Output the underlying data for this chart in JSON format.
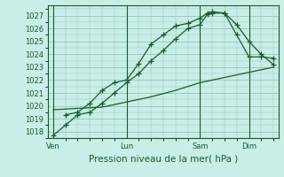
{
  "title": "Pression niveau de la mer( hPa )",
  "bg_color": "#c8eee8",
  "grid_color": "#99ccbb",
  "line_color": "#1a5c28",
  "ylim": [
    1017.5,
    1027.8
  ],
  "yticks": [
    1018,
    1019,
    1020,
    1021,
    1022,
    1023,
    1024,
    1025,
    1026,
    1027
  ],
  "xtick_labels": [
    "Ven",
    "Lun",
    "Sam",
    "Dim"
  ],
  "xtick_positions": [
    0,
    30,
    60,
    80
  ],
  "xlim": [
    -2,
    92
  ],
  "series1_x": [
    0,
    5,
    10,
    15,
    20,
    25,
    30,
    35,
    40,
    45,
    50,
    55,
    60,
    63,
    65,
    70,
    75,
    80,
    85,
    90
  ],
  "series1_y": [
    1017.7,
    1018.5,
    1019.3,
    1019.5,
    1020.2,
    1021.0,
    1021.8,
    1022.5,
    1023.5,
    1024.3,
    1025.2,
    1026.0,
    1026.3,
    1027.1,
    1027.2,
    1027.2,
    1026.3,
    1025.0,
    1024.0,
    1023.2
  ],
  "series2_x": [
    5,
    10,
    15,
    20,
    25,
    30,
    35,
    40,
    45,
    50,
    55,
    60,
    63,
    65,
    70,
    75,
    80,
    85,
    90
  ],
  "series2_y": [
    1019.3,
    1019.5,
    1020.2,
    1021.2,
    1021.8,
    1022.0,
    1023.3,
    1024.8,
    1025.5,
    1026.2,
    1026.4,
    1026.8,
    1027.2,
    1027.3,
    1027.2,
    1025.5,
    1023.8,
    1023.8,
    1023.7
  ],
  "series3_x": [
    0,
    10,
    20,
    30,
    40,
    50,
    60,
    70,
    80,
    90
  ],
  "series3_y": [
    1019.7,
    1019.8,
    1019.9,
    1020.3,
    1020.7,
    1021.2,
    1021.8,
    1022.2,
    1022.6,
    1023.0
  ],
  "xlabel_fontsize": 7.5,
  "tick_fontsize": 6.0
}
